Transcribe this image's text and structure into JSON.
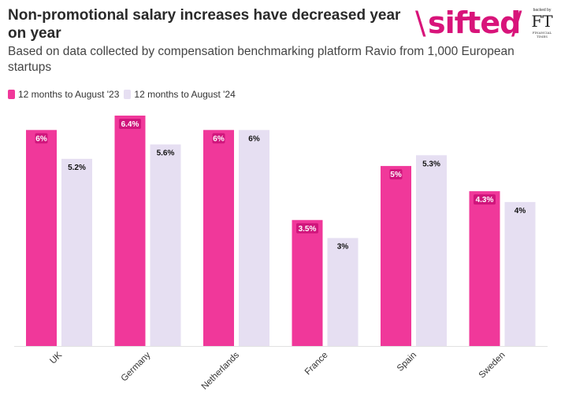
{
  "header": {
    "title": "Non-promotional salary increases have decreased year on year",
    "subtitle": "Based on data collected by compensation benchmarking platform Ravio from 1,000 European startups"
  },
  "logo": {
    "wordmark": "sifted",
    "slash_left": "\\",
    "slash_right": "/",
    "backed_by": "backed by",
    "ft": "FT",
    "ft_sub": "FINANCIAL TIMES"
  },
  "colors": {
    "series_1": "#f0389a",
    "series_2": "#e6dff2"
  },
  "chart_data": {
    "type": "bar",
    "categories": [
      "UK",
      "Germany",
      "Netherlands",
      "France",
      "Spain",
      "Sweden"
    ],
    "series": [
      {
        "name": "12 months to August '23",
        "values": [
          6,
          6.4,
          6,
          3.5,
          5,
          4.3
        ],
        "labels": [
          "6%",
          "6.4%",
          "6%",
          "3.5%",
          "5%",
          "4.3%"
        ]
      },
      {
        "name": "12 months to August '24",
        "values": [
          5.2,
          5.6,
          6,
          3,
          5.3,
          4
        ],
        "labels": [
          "5.2%",
          "5.6%",
          "6%",
          "3%",
          "5.3%",
          "4%"
        ]
      }
    ],
    "ylim": [
      0,
      6.4
    ],
    "legend": "top-left",
    "grid": false
  }
}
